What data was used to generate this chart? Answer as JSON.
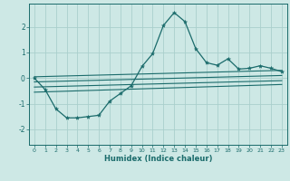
{
  "xlabel": "Humidex (Indice chaleur)",
  "background_color": "#cde8e5",
  "grid_color": "#aacfcc",
  "line_color": "#1a6b6b",
  "xlim": [
    -0.5,
    23.5
  ],
  "ylim": [
    -2.6,
    2.9
  ],
  "xticks": [
    0,
    1,
    2,
    3,
    4,
    5,
    6,
    7,
    8,
    9,
    10,
    11,
    12,
    13,
    14,
    15,
    16,
    17,
    18,
    19,
    20,
    21,
    22,
    23
  ],
  "yticks": [
    -2,
    -1,
    0,
    1,
    2
  ],
  "main_x": [
    0,
    1,
    2,
    3,
    4,
    5,
    6,
    7,
    8,
    9,
    10,
    11,
    12,
    13,
    14,
    15,
    16,
    17,
    18,
    19,
    20,
    21,
    22,
    23
  ],
  "main_y": [
    0.0,
    -0.45,
    -1.2,
    -1.55,
    -1.55,
    -1.5,
    -1.45,
    -0.9,
    -0.6,
    -0.3,
    0.45,
    0.95,
    2.05,
    2.55,
    2.2,
    1.15,
    0.6,
    0.5,
    0.75,
    0.35,
    0.38,
    0.48,
    0.38,
    0.25
  ],
  "line1_x": [
    0,
    23
  ],
  "line1_y": [
    0.05,
    0.3
  ],
  "line2_x": [
    0,
    23
  ],
  "line2_y": [
    -0.15,
    0.1
  ],
  "line3_x": [
    0,
    23
  ],
  "line3_y": [
    -0.35,
    -0.1
  ],
  "line4_x": [
    0,
    23
  ],
  "line4_y": [
    -0.55,
    -0.25
  ]
}
